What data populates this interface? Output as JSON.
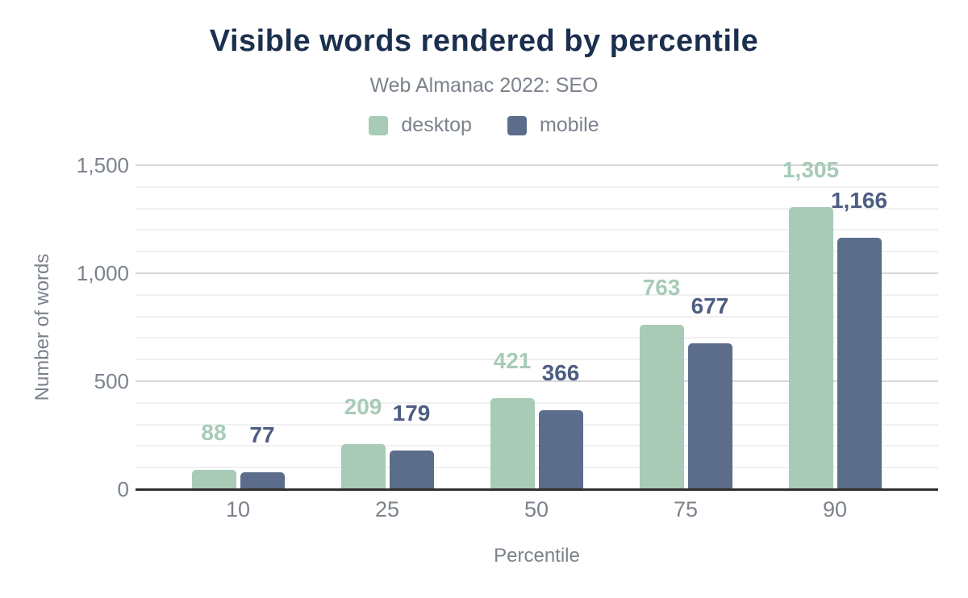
{
  "chart_data": {
    "type": "bar",
    "title": "Visible words rendered by percentile",
    "subtitle": "Web Almanac 2022: SEO",
    "categories": [
      "10",
      "25",
      "50",
      "75",
      "90"
    ],
    "series": [
      {
        "name": "desktop",
        "color": "#a7cbb7",
        "label_color": "#a7cbb7",
        "values": [
          88,
          209,
          421,
          763,
          1305
        ],
        "value_labels": [
          "88",
          "209",
          "421",
          "763",
          "1,305"
        ]
      },
      {
        "name": "mobile",
        "color": "#5c6d8c",
        "label_color": "#4d5e82",
        "values": [
          77,
          179,
          366,
          677,
          1166
        ],
        "value_labels": [
          "77",
          "179",
          "366",
          "677",
          "1,166"
        ]
      }
    ],
    "xlabel": "Percentile",
    "ylabel": "Number of words",
    "ylim": [
      0,
      1500
    ],
    "ytick_values": [
      0,
      500,
      1000,
      1500
    ],
    "ytick_labels": [
      "0",
      "500",
      "1,000",
      "1,500"
    ],
    "minor_grid_step": 100,
    "major_grid_step": 500,
    "grid": true,
    "legend_position": "top"
  },
  "colors": {
    "title": "#1b2f4e",
    "muted_text": "#7b828c",
    "axis_line": "#2f2f2f",
    "major_grid": "#d8d8da",
    "minor_grid": "#f0f0f2",
    "background": "#ffffff"
  }
}
